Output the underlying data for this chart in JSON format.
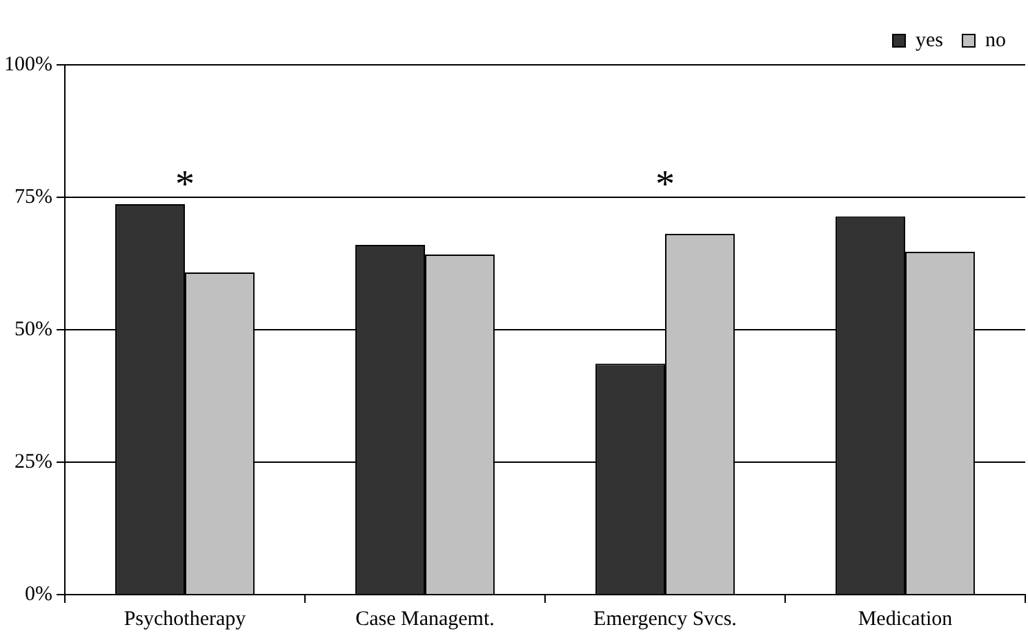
{
  "chart_data": {
    "type": "bar",
    "categories": [
      "Psychotherapy",
      "Case Managemt.",
      "Emergency Svcs.",
      "Medication"
    ],
    "series": [
      {
        "name": "yes",
        "color": "#333333",
        "values": [
          73.7,
          66.0,
          43.6,
          71.4
        ]
      },
      {
        "name": "no",
        "color": "#c0c0c0",
        "values": [
          60.8,
          64.2,
          68.1,
          64.7
        ]
      }
    ],
    "ylim": [
      0,
      100
    ],
    "yticks": [
      {
        "value": 0,
        "label": "0%"
      },
      {
        "value": 25,
        "label": "25%"
      },
      {
        "value": 50,
        "label": "50%"
      },
      {
        "value": 75,
        "label": "75%"
      },
      {
        "value": 100,
        "label": "100%"
      }
    ],
    "grid": "y",
    "legend": "top right",
    "annotations": [
      "*",
      "*"
    ]
  }
}
